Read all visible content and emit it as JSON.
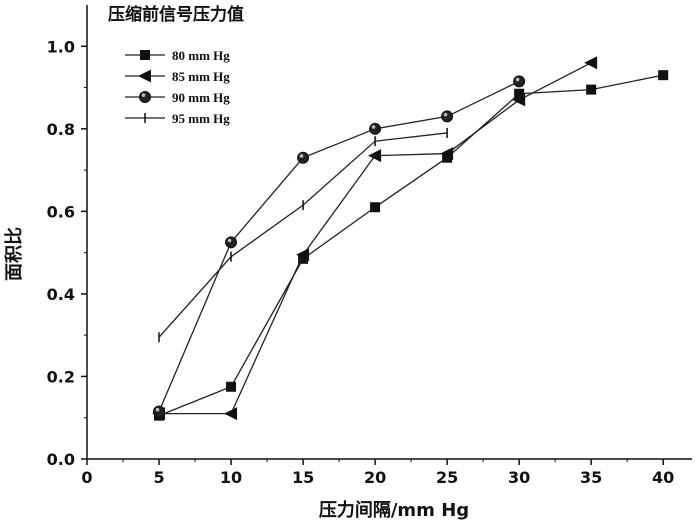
{
  "chart_data": {
    "type": "line",
    "title": "压缩前信号压力值",
    "xlabel": "压力间隔/mm Hg",
    "ylabel": "面积比",
    "xlim": [
      0,
      42
    ],
    "ylim": [
      0,
      1.1
    ],
    "x_ticks": [
      0,
      5,
      10,
      15,
      20,
      25,
      30,
      35,
      40
    ],
    "x_tick_labels": [
      "0",
      "5",
      "10",
      "15",
      "20",
      "25",
      "30",
      "35",
      "40"
    ],
    "y_ticks": [
      0.0,
      0.2,
      0.4,
      0.6,
      0.8,
      1.0
    ],
    "y_tick_labels": [
      "0.0",
      "0.2",
      "0.4",
      "0.6",
      "0.8",
      "1.0"
    ],
    "grid": false,
    "legend_position": "top-left",
    "series": [
      {
        "name": "80 mm Hg",
        "marker": "square",
        "x": [
          5,
          10,
          15,
          20,
          25,
          30,
          35,
          40
        ],
        "y": [
          0.105,
          0.175,
          0.485,
          0.61,
          0.73,
          0.885,
          0.895,
          0.93
        ]
      },
      {
        "name": "85 mm Hg",
        "marker": "triangle-left",
        "x": [
          5,
          10,
          15,
          20,
          25,
          30,
          35
        ],
        "y": [
          0.11,
          0.11,
          0.495,
          0.735,
          0.74,
          0.87,
          0.96
        ]
      },
      {
        "name": "90 mm Hg",
        "marker": "circle",
        "x": [
          5,
          10,
          15,
          20,
          25,
          30
        ],
        "y": [
          0.115,
          0.525,
          0.73,
          0.8,
          0.83,
          0.915
        ]
      },
      {
        "name": "95 mm Hg",
        "marker": "plus",
        "x": [
          5,
          10,
          15,
          20,
          25
        ],
        "y": [
          0.295,
          0.49,
          0.615,
          0.77,
          0.79
        ]
      }
    ]
  }
}
